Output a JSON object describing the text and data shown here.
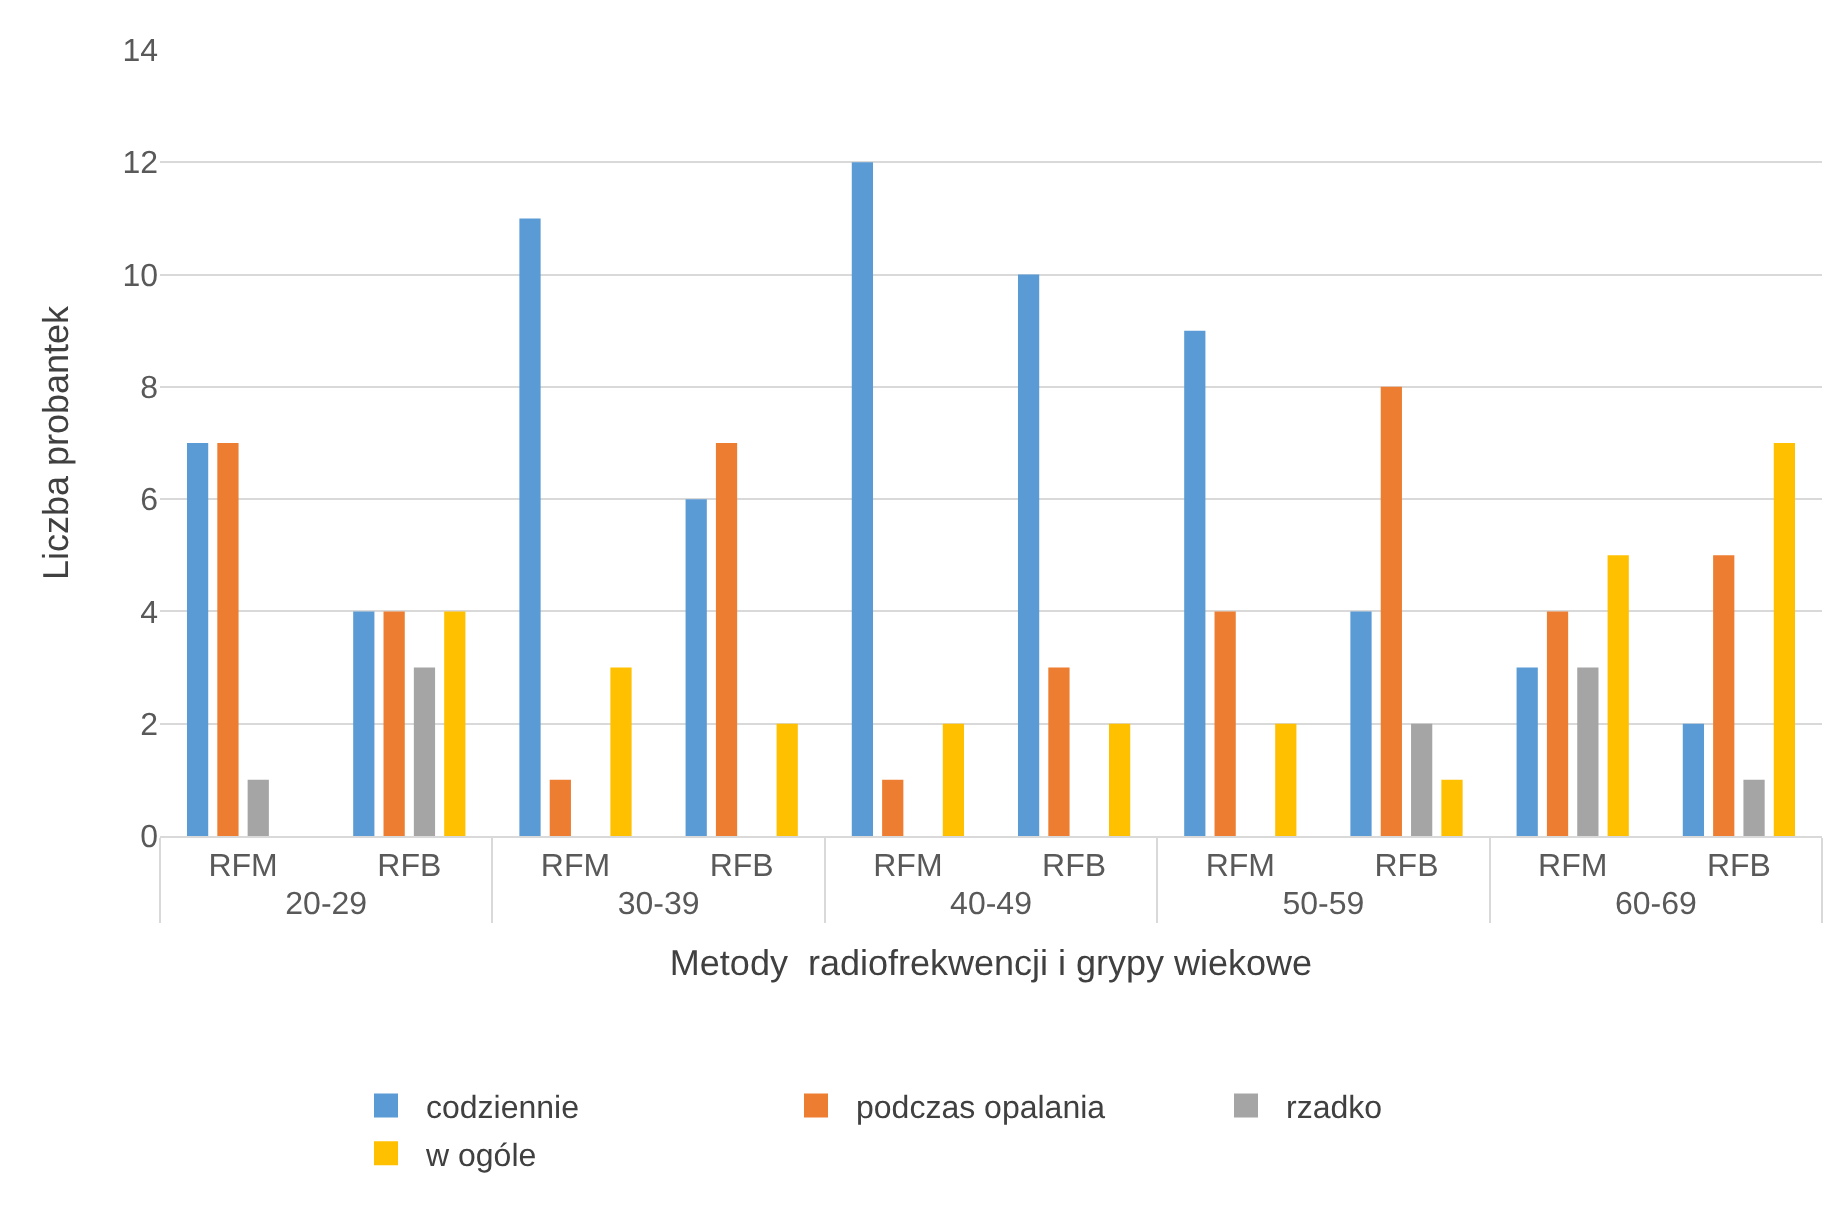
{
  "chart_data": {
    "type": "bar",
    "xlabel": "Metody  radiofrekwencji i grypy wiekowe",
    "ylabel": "Liczba probantek",
    "categories": [
      "RFM",
      "RFB",
      "RFM",
      "RFB",
      "RFM",
      "RFB",
      "RFM",
      "RFB",
      "RFM",
      "RFB"
    ],
    "annotations": [
      "20-29",
      "30-39",
      "40-49",
      "50-59",
      "60-69"
    ],
    "series": [
      {
        "name": "codziennie",
        "color": "#5b9bd5",
        "values": [
          7,
          4,
          11,
          6,
          12,
          10,
          9,
          4,
          3,
          2
        ]
      },
      {
        "name": "podczas opalania",
        "color": "#ed7d31",
        "values": [
          7,
          4,
          1,
          7,
          1,
          3,
          4,
          8,
          4,
          5
        ]
      },
      {
        "name": "rzadko",
        "color": "#a5a5a5",
        "values": [
          1,
          3,
          0,
          0,
          0,
          0,
          0,
          2,
          3,
          1
        ]
      },
      {
        "name": "w ogóle",
        "color": "#ffc000",
        "values": [
          0,
          4,
          3,
          2,
          2,
          2,
          2,
          1,
          5,
          7
        ]
      }
    ],
    "ylim": [
      0,
      14
    ],
    "yticks": [
      0,
      2,
      4,
      6,
      8,
      10,
      12,
      14
    ],
    "grid": "y",
    "legend": "bottom"
  }
}
